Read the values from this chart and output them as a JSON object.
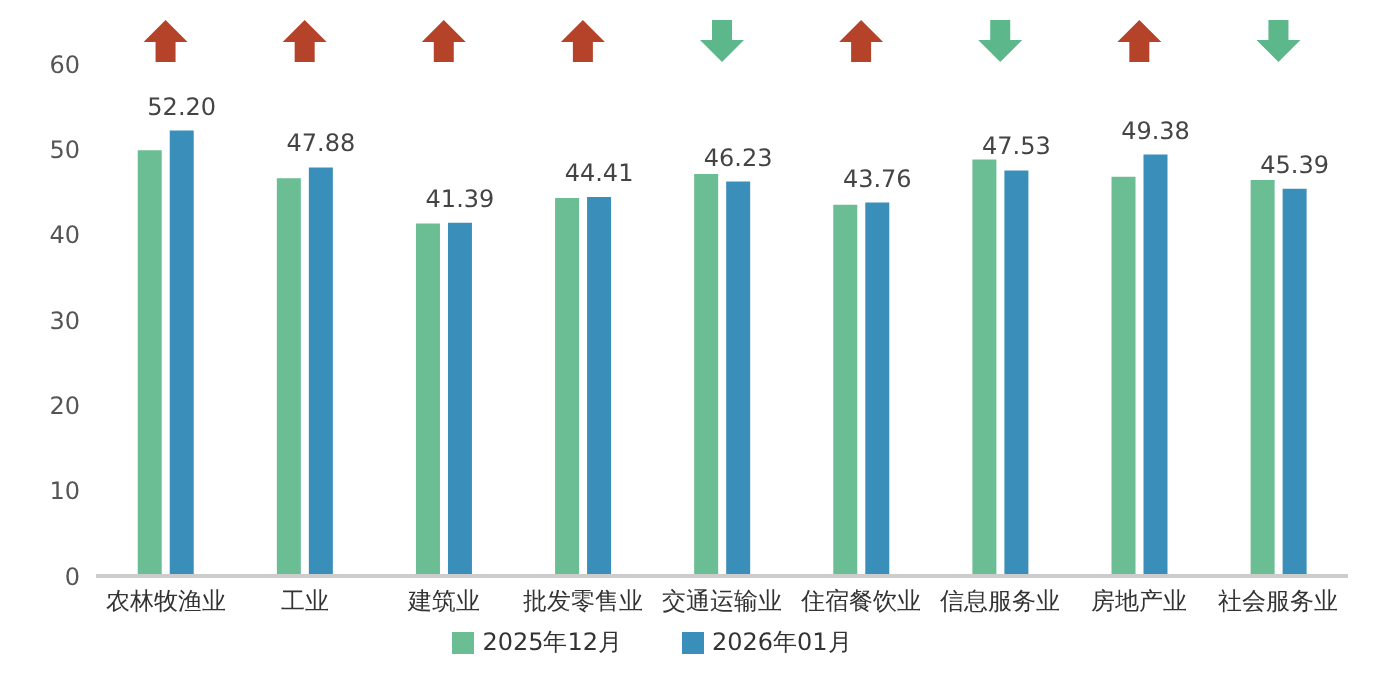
{
  "chart_data": {
    "type": "bar",
    "categories": [
      "农林牧渔业",
      "工业",
      "建筑业",
      "批发零售业",
      "交通运输业",
      "住宿餐饮业",
      "信息服务业",
      "房地产业",
      "社会服务业"
    ],
    "series": [
      {
        "name": "2025年12月",
        "color": "#6bbd93",
        "values": [
          49.9,
          46.6,
          41.3,
          44.3,
          47.1,
          43.5,
          48.8,
          46.8,
          46.4
        ]
      },
      {
        "name": "2026年01月",
        "color": "#3a8fba",
        "values": [
          52.2,
          47.88,
          41.39,
          44.41,
          46.23,
          43.76,
          47.53,
          49.38,
          45.39
        ],
        "value_labels": [
          "52.20",
          "47.88",
          "41.39",
          "44.41",
          "46.23",
          "43.76",
          "47.53",
          "49.38",
          "45.39"
        ]
      }
    ],
    "ylim": [
      0,
      60
    ],
    "yticks": [
      0,
      10,
      20,
      30,
      40,
      50,
      60
    ],
    "grid": false,
    "legend": "bottom"
  }
}
